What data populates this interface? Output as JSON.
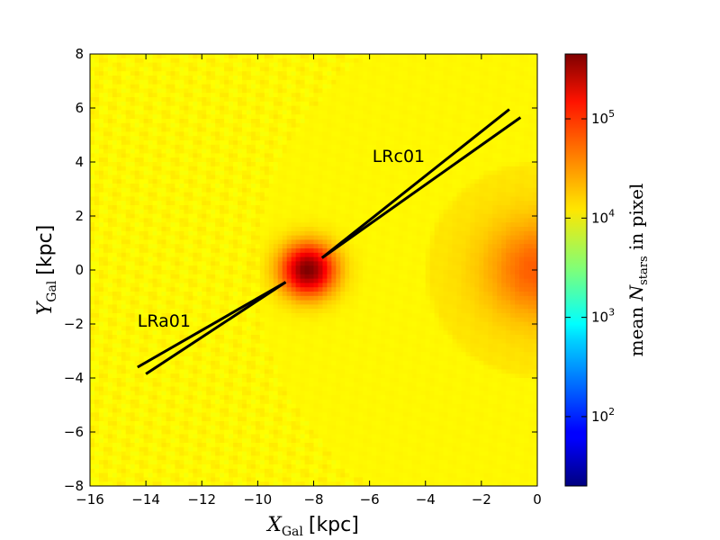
{
  "chart_data": {
    "type": "heatmap",
    "xlabel_main": "X",
    "xlabel_sub": "Gal",
    "xlabel_unit": "[kpc]",
    "ylabel_main": "Y",
    "ylabel_sub": "Gal",
    "ylabel_unit": "[kpc]",
    "xlim": [
      -16,
      0
    ],
    "ylim": [
      -8,
      8
    ],
    "x_ticks": [
      -16,
      -14,
      -12,
      -10,
      -8,
      -6,
      -4,
      -2,
      0
    ],
    "y_ticks": [
      -8,
      -6,
      -4,
      -2,
      0,
      2,
      4,
      6,
      8
    ],
    "x_tick_labels": [
      "−16",
      "−14",
      "−12",
      "−10",
      "−8",
      "−6",
      "−4",
      "−2",
      "0"
    ],
    "y_tick_labels": [
      "−8",
      "−6",
      "−4",
      "−2",
      "0",
      "2",
      "4",
      "6",
      "8"
    ],
    "colorbar": {
      "label_prefix": "mean ",
      "label_var": "N",
      "label_sub": "stars",
      "label_suffix": " in pixel",
      "scale": "log",
      "range": [
        20,
        450000
      ],
      "ticks": [
        100,
        1000,
        10000,
        100000
      ],
      "tick_labels": [
        {
          "base": "10",
          "exp": "2"
        },
        {
          "base": "10",
          "exp": "3"
        },
        {
          "base": "10",
          "exp": "4"
        },
        {
          "base": "10",
          "exp": "5"
        }
      ],
      "colormap": "jet"
    },
    "density_features": {
      "sun_position": [
        -8.2,
        0.0
      ],
      "sun_peak": 450000,
      "galactic_center": [
        0.0,
        0.0
      ],
      "gc_edge_value": 250000
    },
    "fields": [
      {
        "name": "LRc01",
        "label_pos": [
          -5.9,
          4.0
        ],
        "lines": [
          [
            [
              -7.7,
              0.45
            ],
            [
              -1.0,
              5.95
            ]
          ],
          [
            [
              -7.7,
              0.45
            ],
            [
              -0.6,
              5.65
            ]
          ]
        ]
      },
      {
        "name": "LRa01",
        "label_pos": [
          -14.3,
          -2.1
        ],
        "lines": [
          [
            [
              -9.0,
              -0.45
            ],
            [
              -14.3,
              -3.6
            ]
          ],
          [
            [
              -9.0,
              -0.45
            ],
            [
              -14.0,
              -3.85
            ]
          ]
        ]
      }
    ]
  }
}
